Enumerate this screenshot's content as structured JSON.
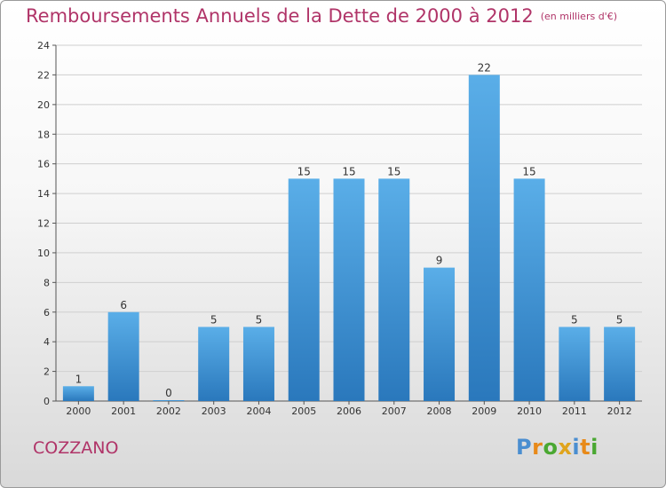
{
  "title": "Remboursements Annuels de la Dette de 2000 à 2012",
  "subtitle": "(en milliers d'€)",
  "commune": "COZZANO",
  "logo": {
    "text": "Proxiti",
    "letters": [
      {
        "char": "P",
        "color": "#4a8ed0"
      },
      {
        "char": "r",
        "color": "#e88a1a"
      },
      {
        "char": "o",
        "color": "#4aa832"
      },
      {
        "char": "x",
        "color": "#e0a41c"
      },
      {
        "char": "i",
        "color": "#4a8ed0"
      },
      {
        "char": "t",
        "color": "#e88a1a"
      },
      {
        "char": "i",
        "color": "#4aa832"
      }
    ]
  },
  "colors": {
    "title": "#b03468",
    "bar_top": "#5aaee8",
    "bar_bottom": "#2a78bc",
    "grid": "#cfcfcf",
    "axis_text": "#333333"
  },
  "chart_data": {
    "type": "bar",
    "categories": [
      "2000",
      "2001",
      "2002",
      "2003",
      "2004",
      "2005",
      "2006",
      "2007",
      "2008",
      "2009",
      "2010",
      "2011",
      "2012"
    ],
    "values": [
      1,
      6,
      0,
      5,
      5,
      15,
      15,
      15,
      9,
      22,
      15,
      5,
      5
    ],
    "ylim": [
      0,
      24
    ],
    "yticks": [
      0,
      2,
      4,
      6,
      8,
      10,
      12,
      14,
      16,
      18,
      20,
      22,
      24
    ],
    "grid": true
  }
}
